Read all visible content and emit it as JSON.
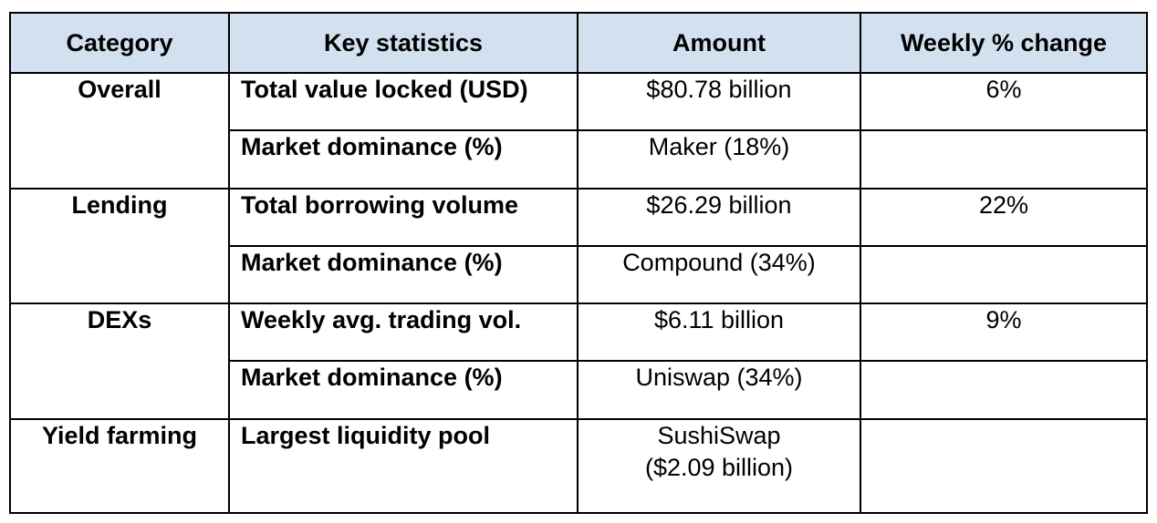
{
  "table": {
    "headers": [
      "Category",
      "Key statistics",
      "Amount",
      "Weekly % change"
    ],
    "groups": [
      {
        "category": "Overall",
        "rows": [
          {
            "key": "Total value locked (USD)",
            "amount": "$80.78 billion",
            "change": "6%"
          },
          {
            "key": "Market dominance (%)",
            "amount": "Maker (18%)",
            "change": ""
          }
        ]
      },
      {
        "category": "Lending",
        "rows": [
          {
            "key": "Total borrowing volume",
            "amount": "$26.29 billion",
            "change": "22%"
          },
          {
            "key": "Market dominance (%)",
            "amount": "Compound (34%)",
            "change": ""
          }
        ]
      },
      {
        "category": "DEXs",
        "rows": [
          {
            "key": "Weekly avg. trading vol.",
            "amount": "$6.11 billion",
            "change": "9%"
          },
          {
            "key": "Market dominance (%)",
            "amount": "Uniswap (34%)",
            "change": ""
          }
        ]
      },
      {
        "category": "Yield farming",
        "rows": [
          {
            "key": "Largest liquidity pool",
            "amount": [
              "SushiSwap",
              "($2.09 billion)"
            ],
            "change": ""
          }
        ]
      }
    ]
  }
}
